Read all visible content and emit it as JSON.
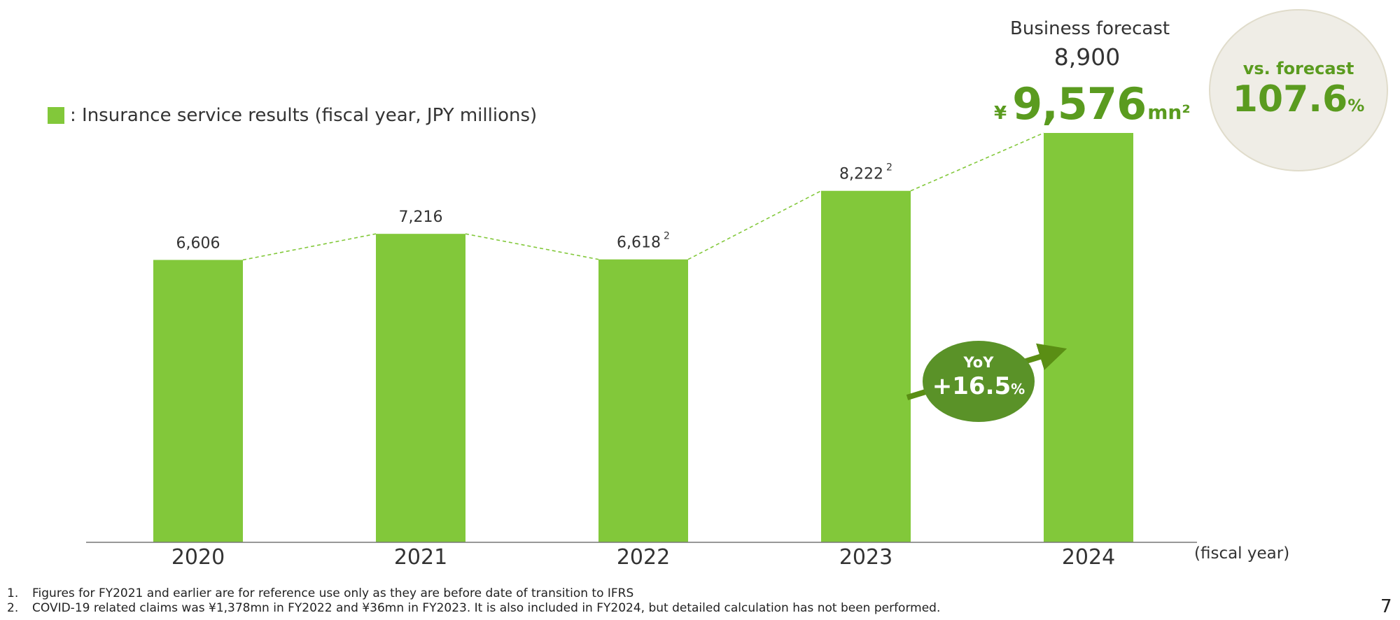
{
  "chart_data": {
    "type": "bar",
    "title": "Insurance service results",
    "legend_label": ": Insurance service results (fiscal year, JPY millions)",
    "categories": [
      "2020",
      "2021",
      "2022",
      "2023",
      "2024"
    ],
    "values": [
      6606,
      7216,
      6618,
      8222,
      9576
    ],
    "data_labels": [
      "6,606",
      "7,216",
      "6,618",
      "8,222",
      "9,576"
    ],
    "label_superscripts": [
      "",
      "",
      "2",
      "2",
      ""
    ],
    "xlabel": "(fiscal year)",
    "ylabel": "",
    "ylim": [
      0,
      9576
    ],
    "trend_line": "dashed line connecting bar tops",
    "bar_color": "#82c83a"
  },
  "forecast": {
    "title": "Business forecast",
    "value": "8,900"
  },
  "latest": {
    "currency": "¥",
    "value": "9,576",
    "unit": "mn²"
  },
  "vs_forecast": {
    "label": "vs. forecast",
    "value": "107.6",
    "unit": "%"
  },
  "yoy": {
    "label": "YoY",
    "value": "+16.5",
    "unit": "%"
  },
  "footnotes": [
    {
      "num": "1.",
      "text": "Figures for FY2021 and earlier are for reference use only as they are before date of transition to IFRS"
    },
    {
      "num": "2.",
      "text": "COVID-19 related claims was ¥1,378mn in FY2022 and ¥36mn in FY2023. It is also included in FY2024, but detailed calculation has not been performed."
    }
  ],
  "page_number": "7",
  "colors": {
    "bar": "#82c83a",
    "accent": "#5a9b1f",
    "yoy_badge": "#5a9228",
    "circle_bg": "#efede6"
  }
}
